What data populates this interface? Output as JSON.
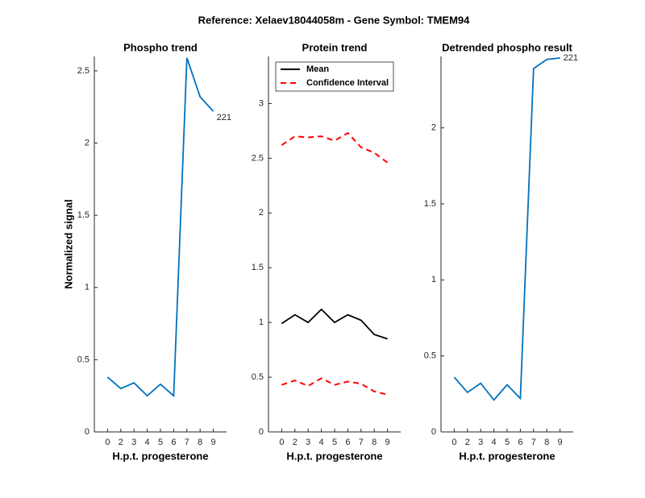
{
  "title": "Reference:  Xelaev18044058m - Gene Symbol:  TMEM94",
  "chart_data": [
    {
      "type": "line",
      "title": "Phospho trend",
      "xlabel": "H.p.t. progesterone",
      "ylabel": "Normalized signal",
      "categories": [
        "0",
        "2",
        "3",
        "4",
        "5",
        "6",
        "7",
        "8",
        "9"
      ],
      "series": [
        {
          "color": "#0072bd",
          "values": [
            0.38,
            0.3,
            0.34,
            0.25,
            0.33,
            0.25,
            2.59,
            2.32,
            2.22
          ]
        }
      ],
      "ylim": [
        0,
        2.6
      ],
      "yticks": [
        0,
        0.5,
        1,
        1.5,
        2,
        2.5
      ],
      "annotation": "221"
    },
    {
      "type": "line",
      "title": "Protein trend",
      "xlabel": "H.p.t. progesterone",
      "categories": [
        "0",
        "2",
        "3",
        "4",
        "5",
        "6",
        "7",
        "8",
        "9"
      ],
      "series": [
        {
          "name": "Mean",
          "color": "#000000",
          "values": [
            0.99,
            1.07,
            1.0,
            1.12,
            1.0,
            1.07,
            1.02,
            0.89,
            0.85
          ]
        },
        {
          "name": "Confidence Interval",
          "color": "#ff0000",
          "dashed": true,
          "values": [
            2.62,
            2.7,
            2.69,
            2.7,
            2.66,
            2.73,
            2.6,
            2.55,
            2.46
          ]
        },
        {
          "color": "#ff0000",
          "dashed": true,
          "values": [
            0.43,
            0.47,
            0.42,
            0.49,
            0.43,
            0.46,
            0.44,
            0.37,
            0.34
          ]
        }
      ],
      "ylim": [
        0,
        3.43
      ],
      "yticks": [
        0,
        0.5,
        1,
        1.5,
        2,
        2.5,
        3
      ],
      "legend": "northwest"
    },
    {
      "type": "line",
      "title": "Detrended phospho result",
      "xlabel": "H.p.t. progesterone",
      "categories": [
        "0",
        "2",
        "3",
        "4",
        "5",
        "6",
        "7",
        "8",
        "9"
      ],
      "series": [
        {
          "color": "#0072bd",
          "values": [
            0.36,
            0.26,
            0.32,
            0.21,
            0.31,
            0.22,
            2.39,
            2.45,
            2.46
          ]
        }
      ],
      "ylim": [
        0,
        2.47
      ],
      "yticks": [
        0,
        0.5,
        1,
        1.5,
        2
      ],
      "annotation": "221"
    }
  ]
}
